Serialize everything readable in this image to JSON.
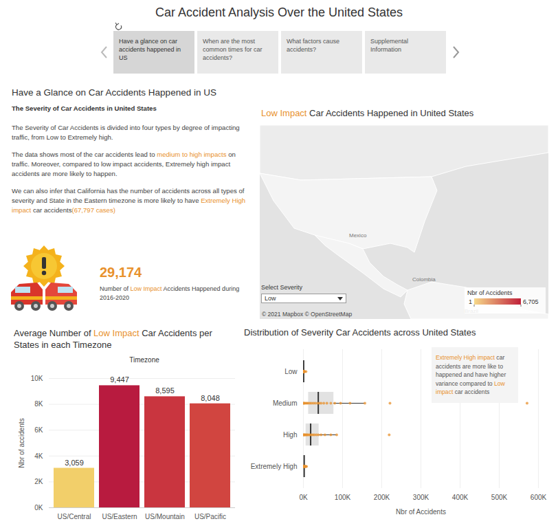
{
  "header": {
    "title": "Car Accident Analysis Over the United States",
    "tabs": [
      "Have a glance on car accidents happened in US",
      "When are the most common times for car accidents?",
      "What factors cause accidents?",
      "Supplemental Information"
    ]
  },
  "intro": {
    "heading": "Have a Glance on Car Accidents Happened in US",
    "subheading": "The Severity of Car Accidents in United States",
    "paragraphs": [
      [
        "The Severity of Car Accidents is divided into four types by degree of impacting traffic, from Low to Extremely high."
      ],
      [
        "The data shows most of the car accidents lead to ",
        {
          "em": "medium to high impacts"
        },
        " on traffic. Moreover, compared to low impact accidents, Extremely high impact accidents are more likely to happen."
      ],
      [
        "We can also infer that California has the number of accidents across all types of severity and State in the Eastern timezone is more likely to have ",
        {
          "em": "Extremely High impact"
        },
        " car accidents",
        {
          "em": "(67,797 cases)"
        }
      ]
    ]
  },
  "kpi": {
    "value": "29,174",
    "caption": [
      "Number of ",
      {
        "em": "Low Impact"
      },
      " Accidents Happened during 2016-2020"
    ]
  },
  "filter": {
    "label": "Select Severity",
    "selected": "Low"
  },
  "chart_data": [
    {
      "type": "map",
      "title": [
        {
          "em": "Low Impact"
        },
        " Car Accidents Happened in United States"
      ],
      "place_labels": [
        "Mexico",
        "Colombia",
        "Brazil"
      ],
      "attribution": "© 2021 Mapbox © OpenStreetMap",
      "color_label": "Nbr of Accidents",
      "color_range": [
        1,
        6705
      ],
      "color_ticks": [
        1,
        {
          "value": 6705,
          "label": "6,705"
        }
      ],
      "colors": [
        "#f6d98a",
        "#c0203a"
      ]
    },
    {
      "type": "bar",
      "title": [
        "Average Number of ",
        {
          "em": "Low Impact"
        },
        " Car Accidents per States in each Timezone"
      ],
      "x_label": "Timezone",
      "y_label": "Nbr of accidents",
      "categories": [
        "US/Central",
        "US/Eastern",
        "US/Mountain",
        "US/Pacific"
      ],
      "values": [
        3059,
        9447,
        8595,
        8048
      ],
      "value_labels": [
        "3,059",
        "9,447",
        "8,595",
        "8,048"
      ],
      "data_labels": true,
      "colors": [
        "#f2cf6a",
        "#b81b3f",
        "#c9353f",
        "#d14540"
      ],
      "ylim": [
        0,
        10000
      ],
      "yticks": [
        {
          "value": 0,
          "label": "0K"
        },
        {
          "value": 2000,
          "label": "2K"
        },
        {
          "value": 4000,
          "label": "4K"
        },
        {
          "value": 6000,
          "label": "6K"
        },
        {
          "value": 8000,
          "label": "8K"
        },
        {
          "value": 10000,
          "label": "10K"
        }
      ],
      "grid": true
    },
    {
      "type": "box",
      "orientation": "horizontal",
      "title": "Distribution of Severity Car Accidents across United States",
      "x_label": "Nbr of Accidents",
      "categories": [
        "Low",
        "Medium",
        "High",
        "Extremely High"
      ],
      "values": [
        [
          6705,
          3100,
          2500,
          1800,
          1500,
          1200,
          1000,
          900,
          800,
          700,
          600,
          500,
          450,
          400,
          350,
          300,
          250,
          200,
          150,
          100
        ],
        [
          571000,
          221000,
          157000,
          119000,
          95000,
          80000,
          70000,
          60000,
          52000,
          45000,
          40000,
          36000,
          30000,
          25000,
          20000,
          16000,
          12000,
          9000,
          6000,
          3000,
          1500,
          500
        ],
        [
          219000,
          85000,
          70000,
          55000,
          45000,
          38000,
          33000,
          28000,
          24000,
          20000,
          17000,
          14000,
          11000,
          9000,
          7000,
          5000,
          3500,
          2000,
          1000,
          400
        ],
        [
          8000,
          6500,
          5200,
          4300,
          3600,
          3000,
          2500,
          2000,
          1600,
          1200,
          900,
          600,
          400,
          200,
          100
        ]
      ],
      "color": "#e8912d",
      "xlim": [
        0,
        600000
      ],
      "xticks": [
        {
          "value": 0,
          "label": "0K"
        },
        {
          "value": 100000,
          "label": "100K"
        },
        {
          "value": 200000,
          "label": "200K"
        },
        {
          "value": 300000,
          "label": "300K"
        },
        {
          "value": 400000,
          "label": "400K"
        },
        {
          "value": 500000,
          "label": "500K"
        },
        {
          "value": 600000,
          "label": "600K"
        }
      ],
      "grid": true,
      "annotation": [
        {
          "em": "Extremely High impact"
        },
        " car accidents are more like to happened and have higher variance compared to ",
        {
          "em": "Low impact"
        },
        " car accidents"
      ]
    }
  ]
}
